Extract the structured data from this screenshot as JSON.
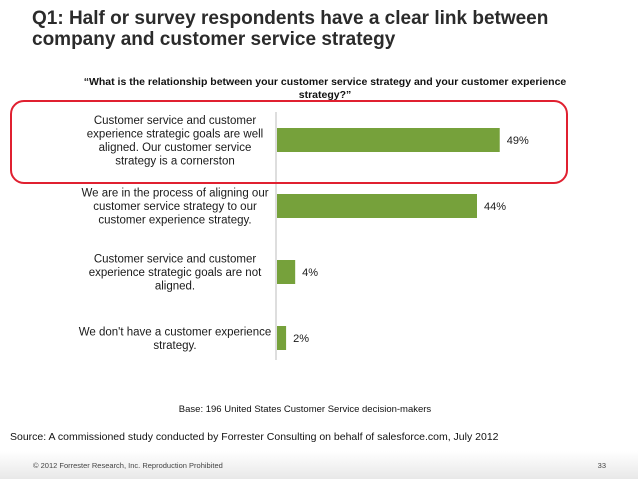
{
  "slide": {
    "title": "Q1: Half or survey respondents have a clear link between company and customer service strategy",
    "question": "“What is the relationship between your customer service strategy and your customer experience strategy?”",
    "base_note": "Base: 196 United States Customer Service decision-makers",
    "source": "Source: A commissioned study conducted by Forrester Consulting on behalf of salesforce.com, July 2012",
    "copyright": "© 2012 Forrester Research, Inc. Reproduction Prohibited",
    "page_number": "33"
  },
  "chart_data": {
    "type": "bar",
    "orientation": "horizontal",
    "categories": [
      "Customer service and customer experience strategic goals are well aligned. Our customer service strategy is a cornerston",
      "We are in the process of aligning our customer service strategy to our customer experience strategy.",
      "Customer service and customer experience strategic goals are not aligned.",
      "We don't have a customer experience strategy."
    ],
    "category_lines": [
      [
        "Customer service and customer",
        "experience strategic goals are well",
        "aligned. Our customer service",
        "strategy is a cornerston"
      ],
      [
        "We are in the process of aligning our",
        "customer service strategy to our",
        "customer experience strategy."
      ],
      [
        "Customer service and customer",
        "experience strategic goals are not",
        "aligned."
      ],
      [
        "We don't have a customer experience",
        "strategy."
      ]
    ],
    "values": [
      49,
      44,
      4,
      2
    ],
    "value_labels": [
      "49%",
      "44%",
      "4%",
      "2%"
    ],
    "highlighted_category_index": 0,
    "xlim": [
      0,
      55
    ],
    "bar_color": "#76a13b",
    "highlight_color": "#e02030",
    "xlabel": "",
    "ylabel": "",
    "grid": false
  }
}
